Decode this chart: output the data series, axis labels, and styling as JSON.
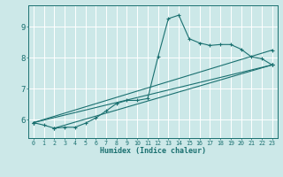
{
  "xlabel": "Humidex (Indice chaleur)",
  "bg_color": "#cce8e8",
  "grid_color": "#ffffff",
  "line_color": "#1a7070",
  "xlim": [
    -0.5,
    23.5
  ],
  "ylim": [
    5.4,
    9.7
  ],
  "xticks": [
    0,
    1,
    2,
    3,
    4,
    5,
    6,
    7,
    8,
    9,
    10,
    11,
    12,
    13,
    14,
    15,
    16,
    17,
    18,
    19,
    20,
    21,
    22,
    23
  ],
  "yticks": [
    6,
    7,
    8,
    9
  ],
  "series": [
    [
      0,
      5.9
    ],
    [
      1,
      5.82
    ],
    [
      2,
      5.72
    ],
    [
      3,
      5.75
    ],
    [
      4,
      5.75
    ],
    [
      5,
      5.88
    ],
    [
      6,
      6.05
    ],
    [
      7,
      6.28
    ],
    [
      8,
      6.52
    ],
    [
      9,
      6.62
    ],
    [
      10,
      6.62
    ],
    [
      11,
      6.68
    ],
    [
      12,
      8.03
    ],
    [
      13,
      9.27
    ],
    [
      14,
      9.38
    ],
    [
      15,
      8.62
    ],
    [
      16,
      8.48
    ],
    [
      17,
      8.4
    ],
    [
      18,
      8.43
    ],
    [
      19,
      8.43
    ],
    [
      20,
      8.28
    ],
    [
      21,
      8.03
    ],
    [
      22,
      7.97
    ],
    [
      23,
      7.77
    ]
  ],
  "line2": [
    [
      0,
      5.9
    ],
    [
      23,
      8.25
    ]
  ],
  "line3": [
    [
      0,
      5.9
    ],
    [
      23,
      7.77
    ]
  ],
  "line4": [
    [
      2,
      5.72
    ],
    [
      23,
      7.77
    ]
  ]
}
